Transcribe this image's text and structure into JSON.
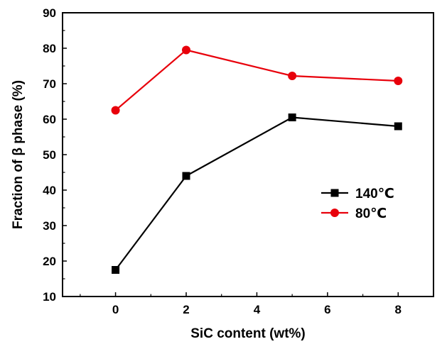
{
  "chart_data": {
    "type": "line",
    "title": "",
    "xlabel": "SiC content (wt%)",
    "ylabel": "Fraction of β phase (%)",
    "xlim": [
      -1.5,
      9
    ],
    "ylim": [
      10,
      90
    ],
    "xticks": [
      0,
      2,
      4,
      6,
      8
    ],
    "yticks": [
      10,
      20,
      30,
      40,
      50,
      60,
      70,
      80,
      90
    ],
    "x": [
      0,
      2,
      5,
      8
    ],
    "series": [
      {
        "name": "140℃",
        "values": [
          17.5,
          44,
          60.5,
          58
        ],
        "color": "#000000",
        "marker": "square"
      },
      {
        "name": "80℃",
        "values": [
          62.5,
          79.5,
          72.2,
          70.8
        ],
        "color": "#e8000b",
        "marker": "circle"
      }
    ],
    "legend": "center-right",
    "grid": false
  }
}
